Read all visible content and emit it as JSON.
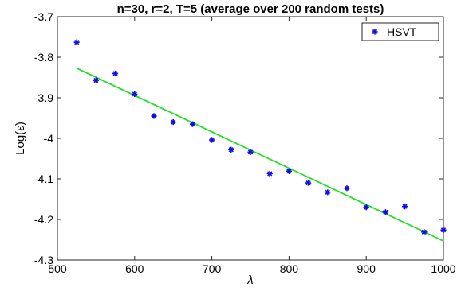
{
  "chart_data": {
    "type": "scatter",
    "title": "n=30, r=2, T=5 (average over 200 random tests)",
    "xlabel": "λ",
    "ylabel": "Log(ε)",
    "xlim": [
      500,
      1000
    ],
    "ylim": [
      -4.3,
      -3.7
    ],
    "xticks": [
      500,
      600,
      700,
      800,
      900,
      1000
    ],
    "yticks": [
      -3.7,
      -3.8,
      -3.9,
      -4,
      -4.1,
      -4.2,
      -4.3
    ],
    "xtick_labels": [
      "500",
      "600",
      "700",
      "800",
      "900",
      "1000"
    ],
    "ytick_labels": [
      "-3.7",
      "-3.8",
      "-3.9",
      "-4",
      "-4.1",
      "-4.2",
      "-4.3"
    ],
    "legend": {
      "position": "top-right",
      "entries": [
        "HSVT"
      ]
    },
    "series": [
      {
        "name": "HSVT",
        "marker": "asterisk",
        "color": "#1010e0",
        "x": [
          525,
          550,
          575,
          600,
          625,
          650,
          675,
          700,
          725,
          750,
          775,
          800,
          825,
          850,
          875,
          900,
          925,
          950,
          975,
          1000
        ],
        "y": [
          -3.763,
          -3.857,
          -3.84,
          -3.891,
          -3.945,
          -3.96,
          -3.965,
          -4.004,
          -4.028,
          -4.034,
          -4.087,
          -4.081,
          -4.11,
          -4.133,
          -4.123,
          -4.17,
          -4.182,
          -4.168,
          -4.231,
          -4.226
        ]
      }
    ],
    "fit_line": {
      "color": "#22e022",
      "x": [
        525,
        1000
      ],
      "y": [
        -3.827,
        -4.253
      ]
    }
  }
}
